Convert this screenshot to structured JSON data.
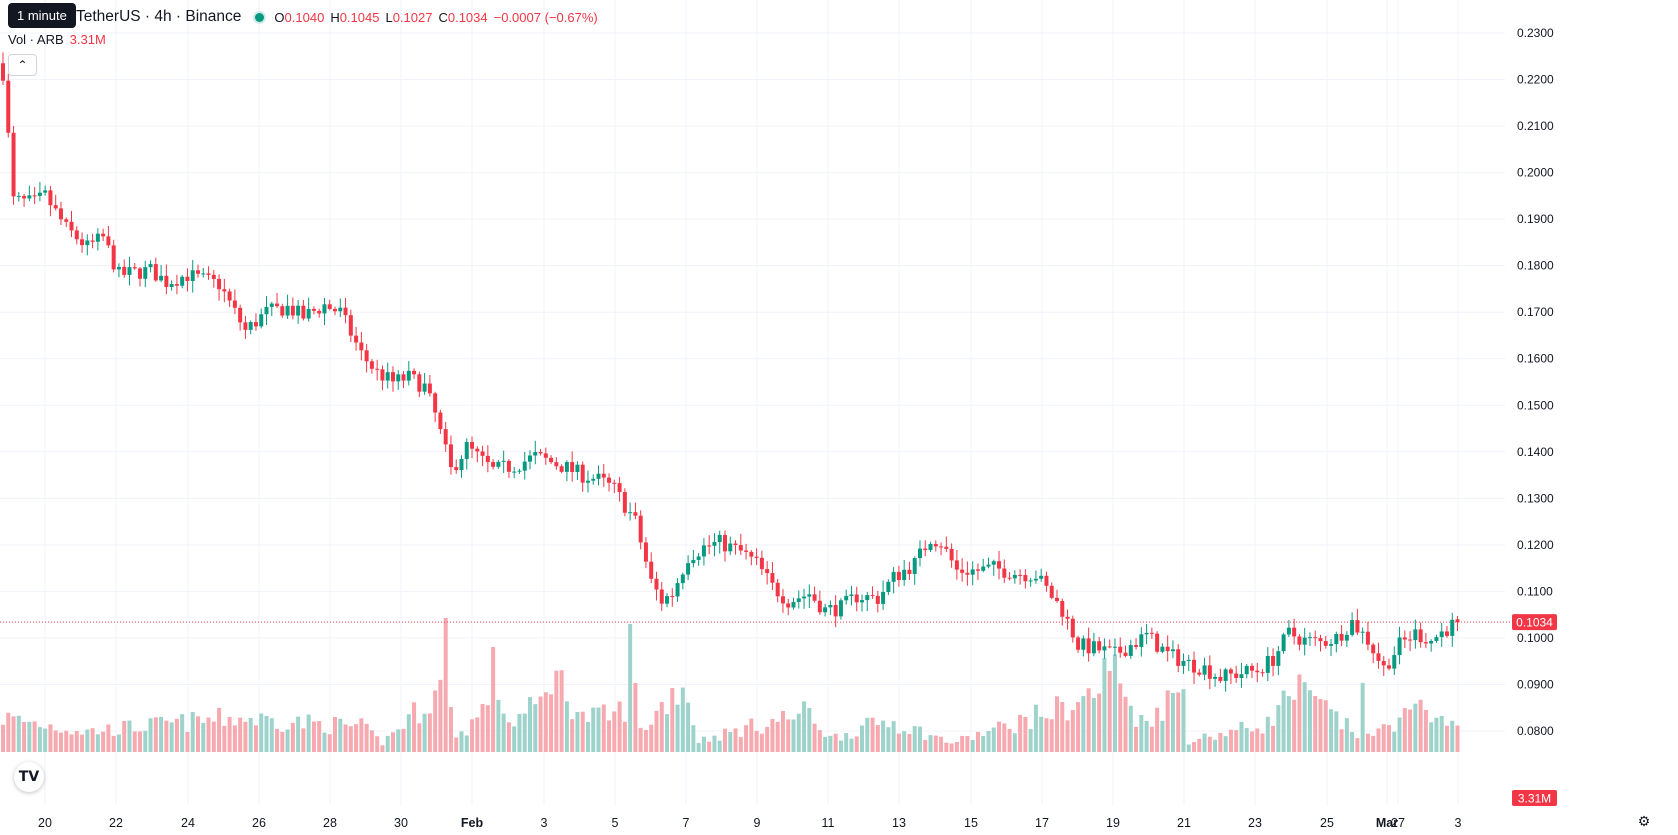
{
  "header": {
    "tooltip": "1 minute",
    "symbol": "TetherUS · 4h · Binance",
    "ohlc": {
      "o_label": "O",
      "o_value": "0.1040",
      "h_label": "H",
      "h_value": "0.1045",
      "l_label": "L",
      "l_value": "0.1027",
      "c_label": "C",
      "c_value": "0.1034",
      "change": "−0.0007 (−0.67%)"
    },
    "status_color": "#089981"
  },
  "volume_legend": {
    "label": "Vol · ARB",
    "value": "3.31M"
  },
  "icons": {
    "collapse": "chevron-up-icon",
    "logo": "tradingview-logo-icon",
    "settings": "gear-icon"
  },
  "colors": {
    "up": "#089981",
    "down": "#f23645",
    "up_volume": "#9ed3cb",
    "down_volume": "#f7a9b0"
  },
  "chart_data": {
    "type": "candlestick",
    "title": "ARB / TetherUS · 4h · Binance",
    "ylim": [
      0.0755,
      0.2335
    ],
    "y_ticks": [
      "0.2300",
      "0.2200",
      "0.2100",
      "0.2000",
      "0.1900",
      "0.1800",
      "0.1700",
      "0.1600",
      "0.1500",
      "0.1400",
      "0.1300",
      "0.1200",
      "0.1100",
      "0.1000",
      "0.0900",
      "0.0800"
    ],
    "x_ticks": [
      "20",
      "22",
      "24",
      "26",
      "28",
      "30",
      "Feb",
      "3",
      "5",
      "7",
      "9",
      "11",
      "13",
      "15",
      "17",
      "19",
      "21",
      "23",
      "25",
      "27",
      "Mar",
      "3"
    ],
    "last_price": "0.1034",
    "last_volume": "3.31M",
    "price_path_key": [
      [
        0,
        0.2215
      ],
      [
        2,
        0.194
      ],
      [
        6,
        0.1935
      ],
      [
        8,
        0.195
      ],
      [
        12,
        0.188
      ],
      [
        16,
        0.184
      ],
      [
        19,
        0.186
      ],
      [
        22,
        0.178
      ],
      [
        28,
        0.179
      ],
      [
        31,
        0.1765
      ],
      [
        35,
        0.178
      ],
      [
        41,
        0.176
      ],
      [
        43,
        0.172
      ],
      [
        46,
        0.166
      ],
      [
        50,
        0.17
      ],
      [
        54,
        0.171
      ],
      [
        57,
        0.169
      ],
      [
        61,
        0.1715
      ],
      [
        64,
        0.17
      ],
      [
        68,
        0.161
      ],
      [
        71,
        0.157
      ],
      [
        74,
        0.155
      ],
      [
        77,
        0.156
      ],
      [
        80,
        0.154
      ],
      [
        82,
        0.148
      ],
      [
        85,
        0.136
      ],
      [
        88,
        0.141
      ],
      [
        93,
        0.136
      ],
      [
        97,
        0.137
      ],
      [
        101,
        0.139
      ],
      [
        106,
        0.137
      ],
      [
        110,
        0.135
      ],
      [
        113,
        0.134
      ],
      [
        116,
        0.132
      ],
      [
        120,
        0.125
      ],
      [
        123,
        0.112
      ],
      [
        125,
        0.108
      ],
      [
        127,
        0.1095
      ],
      [
        130,
        0.1175
      ],
      [
        133,
        0.1195
      ],
      [
        136,
        0.1205
      ],
      [
        140,
        0.1185
      ],
      [
        143,
        0.116
      ],
      [
        146,
        0.111
      ],
      [
        149,
        0.108
      ],
      [
        153,
        0.1095
      ],
      [
        156,
        0.106
      ],
      [
        159,
        0.1065
      ],
      [
        162,
        0.109
      ],
      [
        166,
        0.1085
      ],
      [
        169,
        0.113
      ],
      [
        173,
        0.116
      ],
      [
        176,
        0.1215
      ],
      [
        178,
        0.1205
      ],
      [
        181,
        0.1145
      ],
      [
        185,
        0.1145
      ],
      [
        188,
        0.115
      ],
      [
        192,
        0.114
      ],
      [
        196,
        0.1135
      ],
      [
        198,
        0.1105
      ],
      [
        201,
        0.106
      ],
      [
        204,
        0.0985
      ],
      [
        208,
        0.0975
      ],
      [
        211,
        0.0965
      ],
      [
        214,
        0.0985
      ],
      [
        217,
        0.1005
      ],
      [
        221,
        0.0965
      ],
      [
        225,
        0.0945
      ],
      [
        228,
        0.0935
      ],
      [
        231,
        0.0915
      ],
      [
        235,
        0.0925
      ],
      [
        238,
        0.093
      ],
      [
        241,
        0.0955
      ],
      [
        244,
        0.101
      ],
      [
        247,
        0.0995
      ],
      [
        250,
        0.099
      ],
      [
        253,
        0.1
      ],
      [
        256,
        0.1035
      ],
      [
        259,
        0.0995
      ],
      [
        262,
        0.0935
      ],
      [
        265,
        0.0985
      ],
      [
        268,
        0.101
      ],
      [
        271,
        0.0995
      ],
      [
        274,
        0.102
      ],
      [
        276,
        0.1034
      ]
    ],
    "volume_key": [
      [
        0,
        0.3
      ],
      [
        16,
        0.18
      ],
      [
        44,
        0.3
      ],
      [
        68,
        0.22
      ],
      [
        72,
        0.08
      ],
      [
        83,
        0.55
      ],
      [
        84,
        1.0
      ],
      [
        85,
        0.55
      ],
      [
        86,
        0.12
      ],
      [
        91,
        0.35
      ],
      [
        93,
        0.7
      ],
      [
        96,
        0.25
      ],
      [
        102,
        0.42
      ],
      [
        104,
        0.72
      ],
      [
        110,
        0.3
      ],
      [
        116,
        0.32
      ],
      [
        118,
        0.4
      ],
      [
        119,
        0.9
      ],
      [
        120,
        0.58
      ],
      [
        121,
        0.18
      ],
      [
        129,
        0.62
      ],
      [
        132,
        0.1
      ],
      [
        153,
        0.35
      ],
      [
        157,
        0.12
      ],
      [
        168,
        0.28
      ],
      [
        180,
        0.08
      ],
      [
        190,
        0.22
      ],
      [
        205,
        0.45
      ],
      [
        208,
        0.55
      ],
      [
        210,
        0.8
      ],
      [
        213,
        0.48
      ],
      [
        216,
        0.26
      ],
      [
        224,
        0.55
      ],
      [
        225,
        0.1
      ],
      [
        240,
        0.25
      ],
      [
        245,
        0.55
      ],
      [
        250,
        0.4
      ],
      [
        257,
        0.15
      ],
      [
        258,
        0.8
      ],
      [
        259,
        0.12
      ],
      [
        265,
        0.3
      ],
      [
        273,
        0.4
      ],
      [
        274,
        0.18
      ],
      [
        276,
        0.23
      ]
    ]
  }
}
